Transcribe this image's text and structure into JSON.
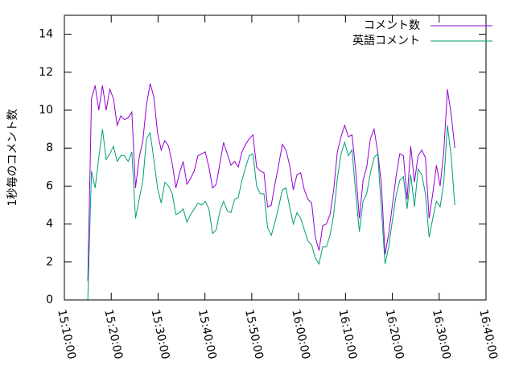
{
  "chart_data": {
    "type": "line",
    "ylabel": "1秒毎のコメント数",
    "x": [
      "15:15:00",
      "15:15:47",
      "15:16:34",
      "15:17:21",
      "15:18:08",
      "15:18:55",
      "15:19:42",
      "15:20:29",
      "15:21:16",
      "15:22:03",
      "15:22:50",
      "15:23:37",
      "15:24:24",
      "15:25:11",
      "15:25:58",
      "15:26:45",
      "15:27:32",
      "15:28:19",
      "15:29:06",
      "15:29:53",
      "15:30:40",
      "15:31:27",
      "15:32:14",
      "15:33:01",
      "15:33:48",
      "15:34:35",
      "15:35:22",
      "15:36:09",
      "15:36:56",
      "15:37:43",
      "15:38:30",
      "15:39:17",
      "15:40:04",
      "15:40:51",
      "15:41:38",
      "15:42:25",
      "15:43:12",
      "15:43:59",
      "15:44:46",
      "15:45:33",
      "15:46:20",
      "15:47:07",
      "15:47:54",
      "15:48:41",
      "15:49:28",
      "15:50:15",
      "15:51:02",
      "15:51:49",
      "15:52:36",
      "15:53:23",
      "15:54:10",
      "15:54:57",
      "15:55:44",
      "15:56:31",
      "15:57:18",
      "15:58:05",
      "15:58:52",
      "15:59:39",
      "16:00:26",
      "16:01:13",
      "16:02:00",
      "16:02:47",
      "16:03:34",
      "16:04:21",
      "16:05:08",
      "16:05:55",
      "16:06:42",
      "16:07:29",
      "16:08:16",
      "16:09:03",
      "16:09:50",
      "16:10:37",
      "16:11:24",
      "16:12:11",
      "16:12:58",
      "16:13:45",
      "16:14:32",
      "16:15:19",
      "16:16:06",
      "16:16:53",
      "16:17:40",
      "16:18:27",
      "16:19:14",
      "16:20:01",
      "16:20:48",
      "16:21:35",
      "16:22:22",
      "16:23:09",
      "16:23:56",
      "16:24:43",
      "16:25:30",
      "16:26:17",
      "16:27:04",
      "16:27:51",
      "16:28:38",
      "16:29:25",
      "16:30:12",
      "16:30:59",
      "16:31:46",
      "16:32:33",
      "16:33:20"
    ],
    "series": [
      {
        "name": "コメント数",
        "color": "#9400d3",
        "values": [
          1.0,
          10.6,
          11.3,
          10.0,
          11.3,
          10.0,
          11.1,
          10.6,
          9.2,
          9.7,
          9.5,
          9.6,
          9.9,
          5.9,
          7.5,
          8.4,
          10.3,
          11.4,
          10.7,
          8.8,
          7.9,
          8.4,
          8.1,
          7.2,
          5.9,
          6.7,
          7.3,
          6.1,
          6.4,
          6.8,
          7.6,
          7.7,
          7.8,
          7.0,
          5.9,
          6.1,
          7.2,
          8.3,
          7.7,
          7.1,
          7.3,
          7.0,
          7.8,
          8.2,
          8.5,
          8.7,
          7.0,
          6.8,
          6.7,
          4.9,
          5.0,
          6.1,
          7.1,
          8.2,
          7.9,
          7.1,
          5.8,
          6.6,
          6.7,
          5.8,
          5.3,
          5.1,
          3.3,
          2.6,
          3.9,
          4.0,
          4.5,
          5.8,
          7.8,
          8.6,
          9.2,
          8.6,
          8.7,
          6.8,
          4.3,
          6.3,
          7.0,
          8.5,
          9.0,
          7.8,
          6.1,
          2.4,
          3.5,
          5.0,
          6.5,
          7.7,
          7.6,
          5.3,
          8.1,
          6.2,
          7.6,
          7.9,
          7.5,
          4.3,
          5.6,
          7.1,
          6.0,
          7.8,
          11.1,
          9.8,
          8.0
        ]
      },
      {
        "name": "英語コメント",
        "color": "#009e73",
        "values": [
          0.0,
          6.8,
          5.9,
          7.5,
          9.0,
          7.4,
          7.7,
          8.1,
          7.3,
          7.6,
          7.6,
          7.3,
          7.8,
          4.3,
          5.3,
          6.3,
          8.5,
          8.8,
          7.4,
          5.9,
          5.1,
          6.2,
          6.0,
          5.6,
          4.5,
          4.6,
          4.8,
          4.1,
          4.5,
          4.8,
          5.1,
          5.0,
          5.2,
          4.8,
          3.5,
          3.7,
          4.7,
          5.2,
          4.7,
          4.6,
          5.3,
          5.4,
          6.3,
          7.0,
          7.6,
          7.7,
          6.0,
          5.6,
          5.6,
          3.8,
          3.4,
          4.1,
          4.9,
          5.8,
          5.9,
          4.9,
          4.0,
          4.6,
          4.3,
          3.7,
          3.1,
          2.9,
          2.2,
          1.9,
          2.8,
          2.8,
          3.4,
          4.5,
          6.4,
          7.7,
          8.3,
          7.6,
          7.9,
          5.6,
          3.6,
          5.2,
          5.6,
          6.7,
          7.5,
          7.7,
          4.8,
          1.9,
          2.8,
          4.2,
          5.5,
          6.3,
          6.5,
          4.8,
          6.6,
          4.9,
          6.9,
          6.6,
          5.6,
          3.3,
          4.3,
          5.2,
          4.9,
          6.2,
          9.2,
          7.6,
          5.0
        ]
      }
    ],
    "xlim": [
      "15:10:00",
      "16:40:00"
    ],
    "xticks": [
      "15:10:00",
      "15:20:00",
      "15:30:00",
      "15:40:00",
      "15:50:00",
      "16:00:00",
      "16:10:00",
      "16:20:00",
      "16:30:00",
      "16:40:00"
    ],
    "ylim": [
      0,
      15
    ],
    "yticks": [
      0,
      2,
      4,
      6,
      8,
      10,
      12,
      14
    ],
    "legend": "top-right",
    "grid": false
  }
}
